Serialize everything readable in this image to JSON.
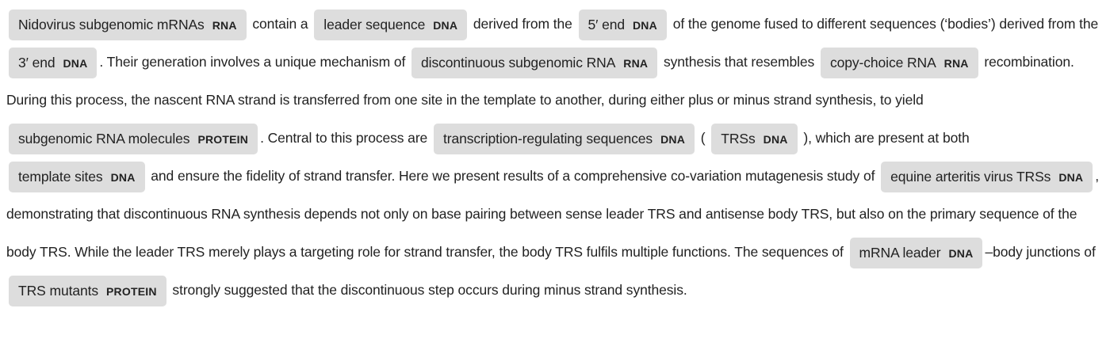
{
  "segments": [
    {
      "type": "entity",
      "text": "Nidovirus subgenomic mRNAs",
      "label": "RNA"
    },
    {
      "type": "text",
      "text": " contain a "
    },
    {
      "type": "entity",
      "text": "leader sequence",
      "label": "DNA"
    },
    {
      "type": "text",
      "text": " derived from the "
    },
    {
      "type": "entity",
      "text": "5′ end",
      "label": "DNA"
    },
    {
      "type": "text",
      "text": " of the genome fused to different sequences (‘bodies’) derived from the "
    },
    {
      "type": "entity",
      "text": "3′ end",
      "label": "DNA"
    },
    {
      "type": "text",
      "text": ". Their generation involves a unique mechanism of "
    },
    {
      "type": "entity",
      "text": "discontinuous subgenomic RNA",
      "label": "RNA"
    },
    {
      "type": "text",
      "text": " synthesis that resembles "
    },
    {
      "type": "entity",
      "text": "copy-choice RNA",
      "label": "RNA"
    },
    {
      "type": "text",
      "text": " recombination. During this process, the nascent RNA strand is transferred from one site in the template to another, during either plus or minus strand synthesis, to yield "
    },
    {
      "type": "entity",
      "text": "subgenomic RNA molecules",
      "label": "PROTEIN"
    },
    {
      "type": "text",
      "text": ". Central to this process are "
    },
    {
      "type": "entity",
      "text": "transcription-regulating sequences",
      "label": "DNA"
    },
    {
      "type": "text",
      "text": " ( "
    },
    {
      "type": "entity",
      "text": "TRSs",
      "label": "DNA"
    },
    {
      "type": "text",
      "text": " ), which are present at both "
    },
    {
      "type": "entity",
      "text": "template sites",
      "label": "DNA"
    },
    {
      "type": "text",
      "text": " and ensure the fidelity of strand transfer. Here we present results of a comprehensive co-variation mutagenesis study of "
    },
    {
      "type": "entity",
      "text": "equine arteritis virus TRSs",
      "label": "DNA"
    },
    {
      "type": "text",
      "text": ", demonstrating that discontinuous RNA synthesis depends not only on base pairing between sense leader TRS and antisense body TRS, but also on the primary sequence of the body TRS. While the leader TRS merely plays a targeting role for strand transfer, the body TRS fulfils multiple functions. The sequences of "
    },
    {
      "type": "entity",
      "text": "mRNA leader",
      "label": "DNA"
    },
    {
      "type": "text",
      "text": "–body junctions of "
    },
    {
      "type": "entity",
      "text": "TRS mutants",
      "label": "PROTEIN"
    },
    {
      "type": "text",
      "text": " strongly suggested that the discontinuous step occurs during minus strand synthesis."
    }
  ]
}
